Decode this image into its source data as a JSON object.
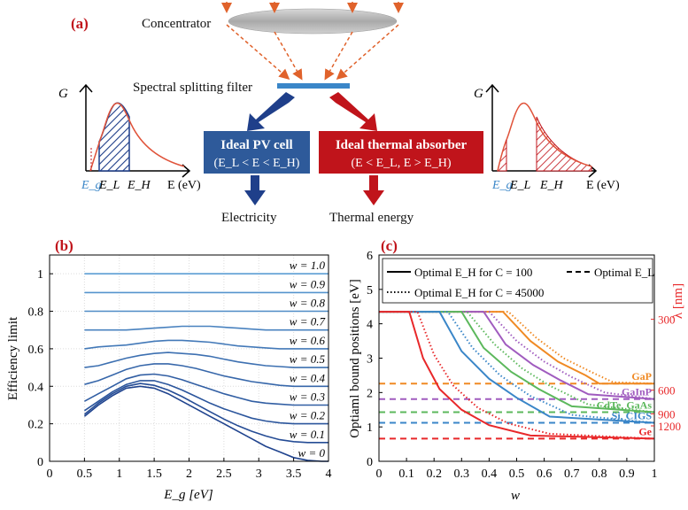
{
  "panel_a": {
    "label": "(a)",
    "concentrator_label": "Concentrator",
    "filter_label": "Spectral splitting filter",
    "pv_box": {
      "title": "Ideal PV cell",
      "condition": "(E_L < E < E_H)"
    },
    "thermal_box": {
      "title": "Ideal thermal absorber",
      "condition": "(E < E_L, E > E_H)"
    },
    "electricity_label": "Electricity",
    "thermal_label": "Thermal energy",
    "spectrum_y_label": "G",
    "spectrum_x_label": "E (eV)",
    "spectrum_eg": "E_g",
    "spectrum_el": "E_L",
    "spectrum_eh": "E_H",
    "colors": {
      "blue_box": "#2e5a9a",
      "red_box": "#c0141b",
      "arrow_dash": "#e0622b",
      "curve": "#e0533a"
    }
  },
  "chart_data": [
    {
      "type": "line",
      "panel_label": "(b)",
      "xlabel": "E_g [eV]",
      "ylabel": "Efficiency limit",
      "xlim": [
        0,
        4
      ],
      "ylim": [
        0,
        1.1
      ],
      "xticks": [
        "0",
        "0.5",
        "1",
        "1.5",
        "2",
        "2.5",
        "3",
        "3.5",
        "4"
      ],
      "yticks": [
        "0",
        "0.2",
        "0.4",
        "0.6",
        "0.8",
        "1"
      ],
      "grid": true,
      "x": [
        0.5,
        0.7,
        0.9,
        1.1,
        1.3,
        1.5,
        1.7,
        1.9,
        2.1,
        2.3,
        2.5,
        2.7,
        2.9,
        3.1,
        3.3,
        3.5,
        3.7,
        3.9,
        4.0
      ],
      "series": [
        {
          "name": "w = 1.0",
          "values": [
            1,
            1,
            1,
            1,
            1,
            1,
            1,
            1,
            1,
            1,
            1,
            1,
            1,
            1,
            1,
            1,
            1,
            1,
            1
          ]
        },
        {
          "name": "w = 0.9",
          "values": [
            0.9,
            0.9,
            0.9,
            0.9,
            0.9,
            0.9,
            0.9,
            0.9,
            0.9,
            0.9,
            0.9,
            0.9,
            0.9,
            0.9,
            0.9,
            0.9,
            0.9,
            0.9,
            0.9
          ]
        },
        {
          "name": "w = 0.8",
          "values": [
            0.8,
            0.8,
            0.8,
            0.8,
            0.8,
            0.8,
            0.8,
            0.8,
            0.8,
            0.8,
            0.8,
            0.8,
            0.8,
            0.8,
            0.8,
            0.8,
            0.8,
            0.8,
            0.8
          ]
        },
        {
          "name": "w = 0.7",
          "values": [
            0.7,
            0.7,
            0.7,
            0.7,
            0.705,
            0.71,
            0.715,
            0.72,
            0.72,
            0.72,
            0.715,
            0.71,
            0.705,
            0.7,
            0.7,
            0.7,
            0.7,
            0.7,
            0.7
          ]
        },
        {
          "name": "w = 0.6",
          "values": [
            0.6,
            0.61,
            0.615,
            0.62,
            0.63,
            0.64,
            0.645,
            0.645,
            0.64,
            0.635,
            0.625,
            0.615,
            0.61,
            0.605,
            0.6,
            0.6,
            0.6,
            0.6,
            0.6
          ]
        },
        {
          "name": "w = 0.5",
          "values": [
            0.5,
            0.51,
            0.53,
            0.55,
            0.565,
            0.575,
            0.58,
            0.575,
            0.57,
            0.56,
            0.545,
            0.53,
            0.52,
            0.51,
            0.505,
            0.5,
            0.5,
            0.5,
            0.5
          ]
        },
        {
          "name": "w = 0.4",
          "values": [
            0.41,
            0.43,
            0.46,
            0.49,
            0.51,
            0.52,
            0.52,
            0.51,
            0.495,
            0.475,
            0.455,
            0.44,
            0.425,
            0.415,
            0.405,
            0.4,
            0.4,
            0.4,
            0.4
          ]
        },
        {
          "name": "w = 0.3",
          "values": [
            0.32,
            0.36,
            0.4,
            0.44,
            0.46,
            0.465,
            0.455,
            0.435,
            0.41,
            0.385,
            0.36,
            0.34,
            0.32,
            0.31,
            0.305,
            0.3,
            0.3,
            0.3,
            0.3
          ]
        },
        {
          "name": "w = 0.2",
          "values": [
            0.27,
            0.32,
            0.37,
            0.41,
            0.43,
            0.43,
            0.41,
            0.38,
            0.345,
            0.31,
            0.28,
            0.255,
            0.23,
            0.215,
            0.205,
            0.2,
            0.2,
            0.2,
            0.2
          ]
        },
        {
          "name": "w = 0.1",
          "values": [
            0.25,
            0.31,
            0.36,
            0.4,
            0.415,
            0.405,
            0.38,
            0.345,
            0.305,
            0.265,
            0.225,
            0.19,
            0.16,
            0.135,
            0.115,
            0.105,
            0.1,
            0.1,
            0.1
          ]
        },
        {
          "name": "w = 0",
          "values": [
            0.24,
            0.3,
            0.35,
            0.39,
            0.4,
            0.39,
            0.36,
            0.32,
            0.28,
            0.24,
            0.2,
            0.16,
            0.12,
            0.08,
            0.05,
            0.02,
            0.005,
            0.0,
            0.0
          ]
        }
      ]
    },
    {
      "type": "line",
      "panel_label": "(c)",
      "xlabel": "w",
      "ylabel": "Optiaml bound positions [eV]",
      "ylabel_right": "λ [nm]",
      "xlim": [
        0,
        1
      ],
      "ylim": [
        0,
        6
      ],
      "xticks": [
        "0",
        "0.1",
        "0.2",
        "0.3",
        "0.4",
        "0.5",
        "0.6",
        "0.7",
        "0.8",
        "0.9",
        "1"
      ],
      "yticks": [
        "0",
        "1",
        "2",
        "3",
        "4",
        "5",
        "6"
      ],
      "right_ticks": [
        {
          "label": "300",
          "energy": 4.13
        },
        {
          "label": "600",
          "energy": 2.07
        },
        {
          "label": "900",
          "energy": 1.38
        },
        {
          "label": "1200",
          "energy": 1.03
        }
      ],
      "legend": {
        "solid": "Optimal  E_H for C = 100",
        "dashed": "Optimal  E_L",
        "dotted": "Optimal  E_H for C = 45000"
      },
      "materials": [
        {
          "name": "GaP",
          "eg": 2.26,
          "color": "#f08a24",
          "solid": {
            "w": [
              0,
              0.45,
              0.55,
              0.65,
              0.75,
              0.8,
              1.0
            ],
            "e": [
              4.35,
              4.35,
              3.5,
              2.9,
              2.5,
              2.26,
              2.26
            ]
          },
          "dotted": {
            "w": [
              0,
              0.47,
              0.57,
              0.67,
              0.77,
              0.85,
              1.0
            ],
            "e": [
              4.35,
              4.35,
              3.6,
              3.0,
              2.6,
              2.3,
              2.26
            ]
          }
        },
        {
          "name": "GaInP",
          "eg": 1.81,
          "color": "#a05cbf",
          "solid": {
            "w": [
              0,
              0.38,
              0.46,
              0.56,
              0.66,
              0.76,
              1.0
            ],
            "e": [
              4.35,
              4.35,
              3.4,
              2.8,
              2.35,
              1.95,
              1.81
            ]
          },
          "dotted": {
            "w": [
              0,
              0.4,
              0.5,
              0.6,
              0.7,
              0.82,
              1.0
            ],
            "e": [
              4.35,
              4.35,
              3.5,
              2.9,
              2.45,
              2.0,
              1.81
            ]
          }
        },
        {
          "name": "CdTe, GaAs",
          "eg": 1.43,
          "color": "#5cb85c",
          "solid": {
            "w": [
              0,
              0.3,
              0.38,
              0.48,
              0.58,
              0.7,
              1.0
            ],
            "e": [
              4.35,
              4.35,
              3.3,
              2.6,
              2.1,
              1.6,
              1.43
            ]
          },
          "dotted": {
            "w": [
              0,
              0.32,
              0.42,
              0.52,
              0.62,
              0.76,
              1.0
            ],
            "e": [
              4.35,
              4.35,
              3.4,
              2.7,
              2.2,
              1.65,
              1.43
            ]
          }
        },
        {
          "name": "Si, CIGS",
          "eg": 1.12,
          "color": "#3a86c8",
          "solid": {
            "w": [
              0,
              0.22,
              0.3,
              0.4,
              0.5,
              0.62,
              1.0
            ],
            "e": [
              4.35,
              4.35,
              3.2,
              2.4,
              1.85,
              1.3,
              1.12
            ]
          },
          "dotted": {
            "w": [
              0,
              0.25,
              0.34,
              0.44,
              0.55,
              0.7,
              1.0
            ],
            "e": [
              4.35,
              4.35,
              3.3,
              2.5,
              1.9,
              1.35,
              1.12
            ]
          }
        },
        {
          "name": "Ge",
          "eg": 0.66,
          "color": "#e8282a",
          "solid": {
            "w": [
              0,
              0.11,
              0.16,
              0.22,
              0.3,
              0.4,
              0.55,
              1.0
            ],
            "e": [
              4.35,
              4.35,
              3.0,
              2.1,
              1.5,
              1.05,
              0.75,
              0.66
            ]
          },
          "dotted": {
            "w": [
              0,
              0.14,
              0.2,
              0.27,
              0.36,
              0.47,
              0.62,
              1.0
            ],
            "e": [
              4.35,
              4.35,
              3.1,
              2.2,
              1.55,
              1.1,
              0.8,
              0.66
            ]
          }
        }
      ]
    }
  ]
}
